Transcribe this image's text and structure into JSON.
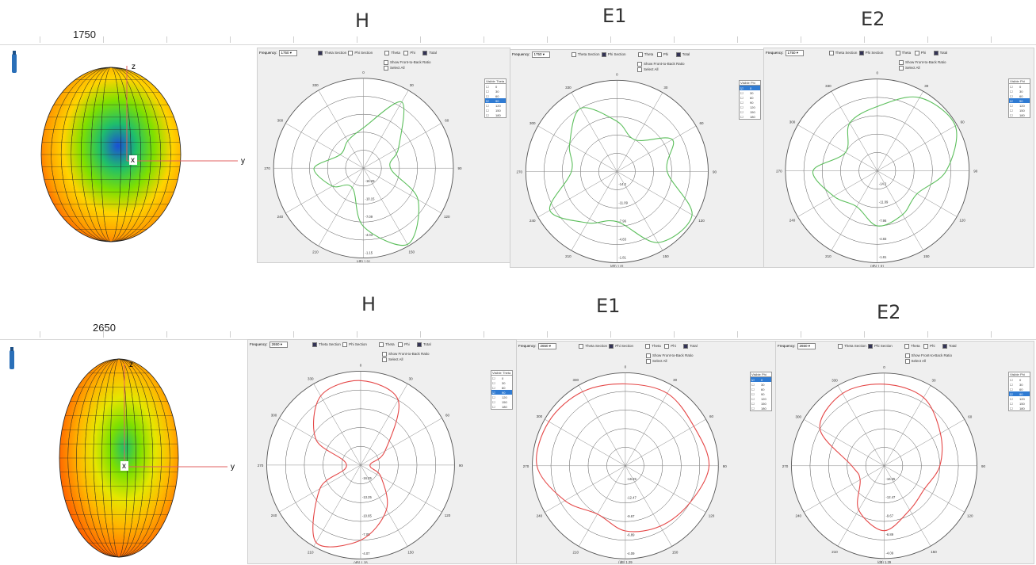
{
  "rows": [
    {
      "freq_label": "1750",
      "globe_colors": [
        "#ff3b00",
        "#ff9a00",
        "#ffd400",
        "#7ee000",
        "#1fbf6a",
        "#1a4fd6"
      ],
      "plots": [
        {
          "title": "H",
          "frequency_label": "Frequency:",
          "frequency_value": "1750",
          "section_options": [
            "Theta Section",
            "Phi Section"
          ],
          "section_selected": "Theta Section",
          "component_options": [
            "Theta",
            "Phi",
            "Total"
          ],
          "component_selected": "Total",
          "show_ftb": "Show Front-to-Back Ratio",
          "select_all": "Select All",
          "table_headers": [
            "Visible",
            "Theta"
          ],
          "table_rows": [
            "0",
            "30",
            "60",
            "90",
            "120",
            "150",
            "180"
          ],
          "selected_row": "90",
          "ring_labels": [
            "-16.29",
            "-10.15",
            "-7.09",
            "-4.03",
            "-1.15"
          ],
          "bottom_label": "(dB) 1.91",
          "angle_labels": [
            "0",
            "30",
            "60",
            "90",
            "120",
            "150",
            "180",
            "210",
            "240",
            "270",
            "300",
            "330"
          ],
          "color": "#5cbf5c"
        },
        {
          "title": "E1",
          "frequency_label": "Frequency:",
          "frequency_value": "1750",
          "section_options": [
            "Theta Section",
            "Phi Section"
          ],
          "section_selected": "Phi Section",
          "component_options": [
            "Theta",
            "Phi",
            "Total"
          ],
          "component_selected": "Total",
          "show_ftb": "Show Front-to-Back Ratio",
          "select_all": "Select All",
          "table_headers": [
            "Visible",
            "Phi"
          ],
          "table_rows": [
            "0",
            "30",
            "60",
            "90",
            "120",
            "150",
            "180"
          ],
          "selected_row": "0",
          "ring_labels": [
            "-14.2",
            "-11.09",
            "-7.96",
            "-4.83",
            "-1.81"
          ],
          "bottom_label": "(dB) 1.81",
          "angle_labels": [
            "0",
            "30",
            "60",
            "90",
            "120",
            "150",
            "180",
            "210",
            "240",
            "270",
            "300",
            "330"
          ],
          "color": "#5cbf5c"
        },
        {
          "title": "E2",
          "frequency_label": "Frequency:",
          "frequency_value": "1750",
          "section_options": [
            "Theta Section",
            "Phi Section"
          ],
          "section_selected": "Phi Section",
          "component_options": [
            "Theta",
            "Phi",
            "Total"
          ],
          "component_selected": "Total",
          "show_ftb": "Show Front-to-Back Ratio",
          "select_all": "Select All",
          "table_headers": [
            "Visible",
            "Phi"
          ],
          "table_rows": [
            "0",
            "30",
            "60",
            "90",
            "120",
            "150",
            "180"
          ],
          "selected_row": "90",
          "ring_labels": [
            "-14.2",
            "-11.09",
            "-7.96",
            "-4.83",
            "-1.81"
          ],
          "bottom_label": "(dB) 1.81",
          "angle_labels": [
            "0",
            "30",
            "60",
            "90",
            "120",
            "150",
            "180",
            "210",
            "240",
            "270",
            "300",
            "330"
          ],
          "color": "#5cbf5c"
        }
      ]
    },
    {
      "freq_label": "2650",
      "globe_colors": [
        "#ff3b00",
        "#ff7a00",
        "#ffb800",
        "#e6e600",
        "#7ee000",
        "#1fbf6a"
      ],
      "plots": [
        {
          "title": "H",
          "frequency_label": "Frequency:",
          "frequency_value": "2650",
          "section_options": [
            "Theta Section",
            "Phi Section"
          ],
          "section_selected": "Theta Section",
          "component_options": [
            "Theta",
            "Phi",
            "Total"
          ],
          "component_selected": "Total",
          "show_ftb": "Show Front-to-Back Ratio",
          "select_all": "Select All",
          "table_headers": [
            "Visible",
            "Theta"
          ],
          "table_rows": [
            "0",
            "30",
            "60",
            "90",
            "120",
            "150",
            "180"
          ],
          "selected_row": "90",
          "ring_labels": [
            "-16.25",
            "-13.25",
            "-10.65",
            "-7.05",
            "-4.07"
          ],
          "bottom_label": "(dB) 1.28",
          "angle_labels": [
            "0",
            "30",
            "60",
            "90",
            "120",
            "150",
            "180",
            "210",
            "240",
            "270",
            "300",
            "330"
          ],
          "color": "#e54848"
        },
        {
          "title": "E1",
          "frequency_label": "Frequency:",
          "frequency_value": "2650",
          "section_options": [
            "Theta Section",
            "Phi Section"
          ],
          "section_selected": "Phi Section",
          "component_options": [
            "Theta",
            "Phi",
            "Total"
          ],
          "component_selected": "Total",
          "show_ftb": "Show Front-to-Back Ratio",
          "select_all": "Select All",
          "table_headers": [
            "Visible",
            "Phi"
          ],
          "table_rows": [
            "0",
            "30",
            "60",
            "90",
            "120",
            "150",
            "180"
          ],
          "selected_row": "0",
          "ring_labels": [
            "-16.25",
            "-12.47",
            "-9.67",
            "-6.89",
            "-4.09"
          ],
          "bottom_label": "(dB) 1.29",
          "angle_labels": [
            "0",
            "30",
            "60",
            "90",
            "120",
            "150",
            "180",
            "210",
            "240",
            "270",
            "300",
            "330"
          ],
          "color": "#e54848"
        },
        {
          "title": "E2",
          "frequency_label": "Frequency:",
          "frequency_value": "2650",
          "section_options": [
            "Theta Section",
            "Phi Section"
          ],
          "section_selected": "Phi Section",
          "component_options": [
            "Theta",
            "Phi",
            "Total"
          ],
          "component_selected": "Total",
          "show_ftb": "Show Front-to-Back Ratio",
          "select_all": "Select All",
          "table_headers": [
            "Visible",
            "Phi"
          ],
          "table_rows": [
            "0",
            "30",
            "60",
            "90",
            "120",
            "150",
            "180"
          ],
          "selected_row": "90",
          "ring_labels": [
            "-16.25",
            "-12.47",
            "-9.67",
            "-6.89",
            "-4.09"
          ],
          "bottom_label": "(dB) 1.29",
          "angle_labels": [
            "0",
            "30",
            "60",
            "90",
            "120",
            "150",
            "180",
            "210",
            "240",
            "270",
            "300",
            "330"
          ],
          "color": "#e54848"
        }
      ]
    }
  ],
  "axis_labels": {
    "z": "z",
    "y": "y",
    "x": "x"
  },
  "chart_data": [
    {
      "type": "line",
      "polar": true,
      "title": "H",
      "frequency": "1750",
      "theta_deg": [
        0,
        30,
        60,
        90,
        120,
        150,
        180,
        210,
        240,
        270,
        300,
        330
      ],
      "radius_norm": [
        0.45,
        0.85,
        0.45,
        0.3,
        0.7,
        0.98,
        0.65,
        0.25,
        0.4,
        0.55,
        0.3,
        0.35
      ]
    },
    {
      "type": "line",
      "polar": true,
      "title": "E1",
      "frequency": "1750",
      "theta_deg": [
        0,
        30,
        60,
        90,
        120,
        150,
        180,
        210,
        240,
        270,
        300,
        330
      ],
      "radius_norm": [
        0.55,
        0.4,
        0.7,
        0.55,
        0.95,
        0.9,
        0.55,
        0.65,
        0.85,
        0.5,
        0.6,
        0.8
      ]
    },
    {
      "type": "line",
      "polar": true,
      "title": "E2",
      "frequency": "1750",
      "theta_deg": [
        0,
        30,
        60,
        90,
        120,
        150,
        180,
        210,
        240,
        270,
        300,
        330
      ],
      "radius_norm": [
        0.7,
        0.92,
        0.98,
        0.75,
        0.5,
        0.55,
        0.6,
        0.45,
        0.55,
        0.7,
        0.4,
        0.6
      ]
    },
    {
      "type": "line",
      "polar": true,
      "title": "H",
      "frequency": "2650",
      "theta_deg": [
        0,
        30,
        60,
        90,
        120,
        150,
        180,
        210,
        240,
        270,
        300,
        330
      ],
      "radius_norm": [
        0.9,
        0.8,
        0.3,
        0.1,
        0.25,
        0.55,
        0.8,
        0.95,
        0.5,
        0.15,
        0.55,
        0.85
      ]
    },
    {
      "type": "line",
      "polar": true,
      "title": "E1",
      "frequency": "2650",
      "theta_deg": [
        0,
        30,
        60,
        90,
        120,
        150,
        180,
        210,
        240,
        270,
        300,
        330
      ],
      "radius_norm": [
        0.88,
        0.9,
        0.85,
        0.9,
        0.8,
        0.75,
        0.7,
        0.6,
        0.75,
        0.95,
        0.95,
        0.92
      ]
    },
    {
      "type": "line",
      "polar": true,
      "title": "E2",
      "frequency": "2650",
      "theta_deg": [
        0,
        30,
        60,
        90,
        120,
        150,
        180,
        210,
        240,
        270,
        300,
        330
      ],
      "radius_norm": [
        0.88,
        0.85,
        0.7,
        0.6,
        0.5,
        0.55,
        0.7,
        0.55,
        0.3,
        0.35,
        0.8,
        0.9
      ]
    }
  ]
}
